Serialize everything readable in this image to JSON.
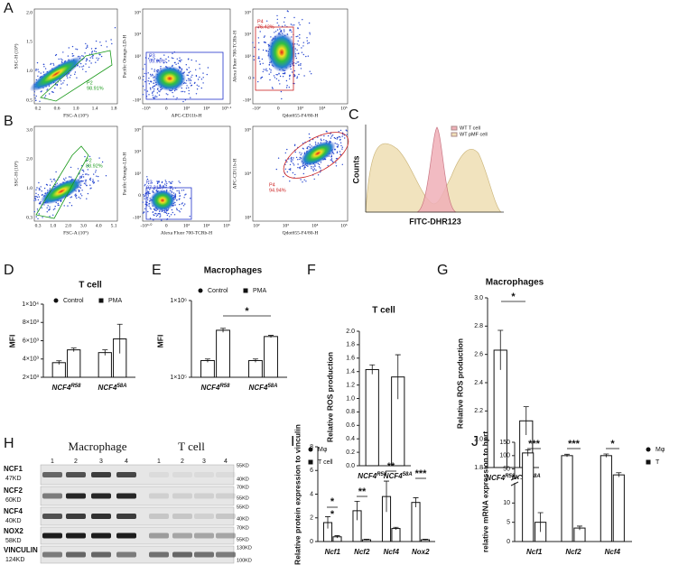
{
  "panel_labels": [
    "A",
    "B",
    "C",
    "D",
    "E",
    "F",
    "G",
    "H",
    "I",
    "J"
  ],
  "flow_plots": [
    {
      "xlabel": "FSC-A (10⁵)",
      "ylabel": "SSC-H (10⁵)",
      "gate": "P2",
      "percent": "98.91%",
      "color": "#1a9a1a",
      "xticks": [
        "0.2",
        "0.6",
        "1.0",
        "1.4",
        "1.8"
      ],
      "yticks": [
        "0.5",
        "1.0",
        "1.5",
        "2.0"
      ]
    },
    {
      "xlabel": "APC-CD11b-H",
      "ylabel": "Pacific Orange-LD-H",
      "gate": "P3",
      "percent": "99.93%",
      "color": "#2233cc",
      "xticks": [
        "-10⁵",
        "0",
        "10³",
        "10⁴",
        "10⁵·¹"
      ],
      "yticks": [
        "-10³",
        "0",
        "10³",
        "10⁴",
        "10⁵"
      ]
    },
    {
      "xlabel": "Qdot655-F4/80-H",
      "ylabel": "Alexa Fluor 700-TCRb-H",
      "gate": "P4",
      "percent": "76.42%",
      "color": "#cc2222",
      "xticks": [
        "-10²",
        "0",
        "10³",
        "10⁴",
        "10⁵"
      ],
      "yticks": [
        "-10²",
        "0",
        "10³",
        "10⁴",
        "10⁵"
      ]
    },
    {
      "xlabel": "FSC-A (10⁵)",
      "ylabel": "SSC-H (10⁵)",
      "gate": "P2",
      "percent": "88.92%",
      "color": "#1a9a1a",
      "xticks": [
        "0.3",
        "1.0",
        "2.0",
        "3.0",
        "4.0",
        "5.1"
      ],
      "yticks": [
        "0.3",
        "1.0",
        "2.0",
        "3.0"
      ]
    },
    {
      "xlabel": "Alexa Fluor 700-TCRb-H",
      "ylabel": "Pacific Orange-LD-H",
      "gate": "P3",
      "percent": "97.31%",
      "color": "#2233cc",
      "xticks": [
        "-10³·⁰",
        "0",
        "10³",
        "10⁴",
        "10⁵"
      ],
      "yticks": [
        "-10³",
        "0",
        "10³",
        "10⁴",
        "10⁵"
      ]
    },
    {
      "xlabel": "Qdot655-F4/80-H",
      "ylabel": "APC-CD11b-H",
      "gate": "P4",
      "percent": "94.94%",
      "color": "#cc2222",
      "xticks": [
        "10²",
        "10³",
        "10⁴",
        "10⁵"
      ],
      "yticks": [
        "10³",
        "10⁴",
        "10⁵"
      ]
    }
  ],
  "histogram": {
    "ylabel": "Counts",
    "xlabel": "FITC-DHR123",
    "legend": [
      "WT T cell",
      "WT pMF cell"
    ],
    "colors": [
      "#f0b0b8",
      "#f0e0b8"
    ]
  },
  "blot": {
    "groups": [
      "Macrophage",
      "T cell"
    ],
    "lanes": [
      "1",
      "2",
      "3",
      "4",
      "1",
      "2",
      "3",
      "4"
    ],
    "proteins": [
      {
        "name": "NCF1",
        "size": "47KD"
      },
      {
        "name": "NCF2",
        "size": "60KD"
      },
      {
        "name": "NCF4",
        "size": "40KD"
      },
      {
        "name": "NOX2",
        "size": "58KD"
      },
      {
        "name": "VINCULIN",
        "size": "124KD"
      }
    ],
    "markers": [
      "55KD",
      "40KD",
      "70KD",
      "55KD",
      "55KD",
      "40KD",
      "70KD",
      "55KD",
      "130KD",
      "100KD"
    ]
  },
  "chart_data": [
    {
      "type": "bar",
      "title": "T cell",
      "ylabel": "MFI",
      "categories": [
        {
          "base": "NCF4",
          "sup": "R58"
        },
        {
          "base": "NCF4",
          "sup": "58A"
        }
      ],
      "series": [
        {
          "name": "Control",
          "marker": "circle",
          "color": "#ffffff",
          "values": [
            3600,
            4700
          ],
          "errors": [
            200,
            300
          ]
        },
        {
          "name": "PMA",
          "marker": "square",
          "color": "#ffffff",
          "values": [
            5000,
            6200
          ],
          "errors": [
            200,
            1600
          ]
        }
      ],
      "ylim": [
        2000,
        10000
      ],
      "yticks": [
        {
          "value": 2000,
          "label": "2×10³"
        },
        {
          "value": 4000,
          "label": "4×10³"
        },
        {
          "value": 6000,
          "label": "6×10³"
        },
        {
          "value": 8000,
          "label": "8×10³"
        },
        {
          "value": 10000,
          "label": "1×10⁴"
        }
      ]
    },
    {
      "type": "bar",
      "title": "Macrophages",
      "ylabel": "MFI",
      "log": true,
      "categories": [
        {
          "base": "NCF4",
          "sup": "R58"
        },
        {
          "base": "NCF4",
          "sup": "58A"
        }
      ],
      "series": [
        {
          "name": "Control",
          "marker": "circle",
          "color": "#ffffff",
          "values": [
            165000,
            165000
          ],
          "errors": [
            8000,
            8000
          ]
        },
        {
          "name": "PMA",
          "marker": "square",
          "color": "#ffffff",
          "values": [
            410000,
            340000
          ],
          "errors": [
            25000,
            12000
          ]
        }
      ],
      "ylim": [
        100000,
        1000000
      ],
      "yticks": [
        {
          "value": 100000,
          "label": "1×10⁵"
        },
        {
          "value": 1000000,
          "label": "1×10⁶"
        }
      ],
      "annotations": [
        "*"
      ]
    },
    {
      "type": "bar",
      "title": "T cell",
      "ylabel": "Relative ROS production",
      "categories": [
        {
          "base": "NCF4",
          "sup": "R58"
        },
        {
          "base": "NCF4",
          "sup": "58A"
        }
      ],
      "series": [
        {
          "name": "",
          "marker": "circle",
          "color": "#ffffff",
          "values": [
            1.43,
            1.32
          ],
          "errors": [
            0.07,
            0.33
          ]
        }
      ],
      "ylim": [
        0,
        2
      ],
      "yticks": [
        {
          "value": 0,
          "label": "0.0"
        },
        {
          "value": 0.2,
          "label": "0.2"
        },
        {
          "value": 0.4,
          "label": "0.4"
        },
        {
          "value": 0.6,
          "label": "0.6"
        },
        {
          "value": 0.8,
          "label": "0.8"
        },
        {
          "value": 1,
          "label": "1.0"
        },
        {
          "value": 1.2,
          "label": "1.2"
        },
        {
          "value": 1.4,
          "label": "1.4"
        },
        {
          "value": 1.6,
          "label": "1.6"
        },
        {
          "value": 1.8,
          "label": "1.8"
        },
        {
          "value": 2,
          "label": "2.0"
        }
      ]
    },
    {
      "type": "bar",
      "title": "Macrophages",
      "ylabel": "Relative ROS production",
      "categories": [
        {
          "base": "NCF4",
          "sup": "R58"
        },
        {
          "base": "NCF4",
          "sup": "58A"
        }
      ],
      "series": [
        {
          "name": "",
          "marker": "circle",
          "color": "#ffffff",
          "values": [
            2.63,
            2.13
          ],
          "errors": [
            0.14,
            0.1
          ]
        }
      ],
      "ylim": [
        1.8,
        3
      ],
      "yticks": [
        {
          "value": 1.8,
          "label": "1.8"
        },
        {
          "value": 2,
          "label": "2.0"
        },
        {
          "value": 2.2,
          "label": "2.2"
        },
        {
          "value": 2.4,
          "label": "2.4"
        },
        {
          "value": 2.6,
          "label": "2.6"
        },
        {
          "value": 2.8,
          "label": "2.8"
        },
        {
          "value": 3,
          "label": "3.0"
        }
      ],
      "annotations": [
        "*"
      ]
    },
    {
      "type": "bar",
      "title": "",
      "ylabel": "Relative protein expression to vinculin",
      "categories": [
        {
          "base": "Ncf1",
          "sup": ""
        },
        {
          "base": "Ncf2",
          "sup": ""
        },
        {
          "base": "Ncf4",
          "sup": ""
        },
        {
          "base": "Nox2",
          "sup": ""
        }
      ],
      "series": [
        {
          "name": "Mφ",
          "marker": "circle",
          "color": "#ffffff",
          "values": [
            1.6,
            2.6,
            3.8,
            3.3
          ],
          "errors": [
            0.5,
            0.8,
            1.3,
            0.4
          ]
        },
        {
          "name": "T cell",
          "marker": "square",
          "color": "#ffffff",
          "values": [
            0.4,
            0.15,
            1.1,
            0.15
          ],
          "errors": [
            0.1,
            0.05,
            0.1,
            0.05
          ]
        }
      ],
      "ylim": [
        0,
        8
      ],
      "yticks": [
        0,
        2,
        4,
        6,
        8
      ],
      "annotations": [
        "*",
        "*",
        "**",
        "**",
        "***"
      ]
    },
    {
      "type": "bar",
      "title": "",
      "ylabel": "relative mRNA expression to hprt",
      "categories": [
        {
          "base": "Ncf1",
          "sup": ""
        },
        {
          "base": "Ncf2",
          "sup": ""
        },
        {
          "base": "Ncf4",
          "sup": ""
        }
      ],
      "series": [
        {
          "name": "Mφ",
          "marker": "circle",
          "color": "#ffffff",
          "values": [
            110,
            100,
            100
          ],
          "errors": [
            12,
            5,
            6
          ]
        },
        {
          "name": "T",
          "marker": "square",
          "color": "#ffffff",
          "values": [
            5,
            3.5,
            28
          ],
          "errors": [
            2.5,
            0.5,
            8
          ]
        }
      ],
      "ylim": [
        0,
        150
      ],
      "ybreak": 15,
      "yticks": [
        0,
        5,
        10,
        50,
        100,
        150
      ],
      "annotations": [
        "***",
        "***",
        "*"
      ]
    }
  ]
}
